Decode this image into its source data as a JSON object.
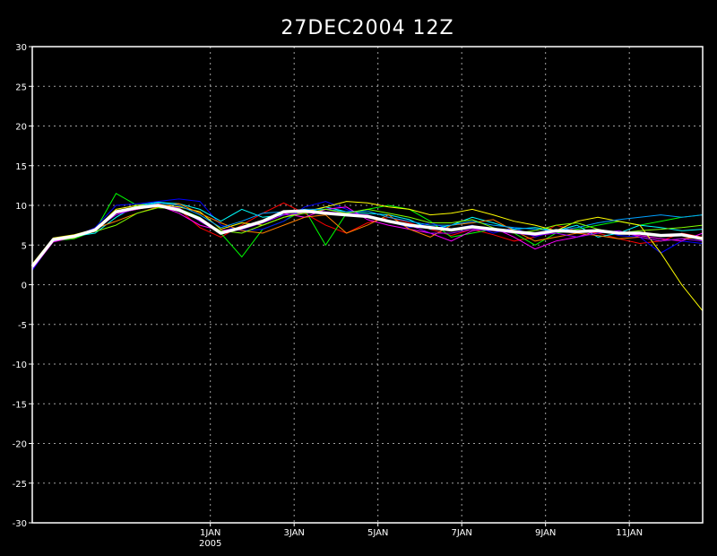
{
  "chart_data": {
    "type": "line",
    "title": "27DEC2004 12Z",
    "xlabel": "",
    "ylabel": "",
    "ylim": [
      -30,
      30
    ],
    "y_ticks": [
      "30",
      "25",
      "20",
      "15",
      "10",
      "5",
      "0",
      "-5",
      "-10",
      "-15",
      "-20",
      "-25",
      "-30"
    ],
    "x_range_days": [
      0,
      16
    ],
    "x_tick_labels": [
      {
        "label": "1JAN",
        "sublabel": "2005",
        "day": 4.25
      },
      {
        "label": "3JAN",
        "day": 6.25
      },
      {
        "label": "5JAN",
        "day": 8.25
      },
      {
        "label": "7JAN",
        "day": 10.25
      },
      {
        "label": "9JAN",
        "day": 12.25
      },
      {
        "label": "11JAN",
        "day": 14.25
      }
    ],
    "grid": true,
    "x": [
      0,
      0.5,
      1,
      1.5,
      2,
      2.5,
      3,
      3.5,
      4,
      4.5,
      5,
      5.5,
      6,
      6.5,
      7,
      7.5,
      8,
      8.5,
      9,
      9.5,
      10,
      10.5,
      11,
      11.5,
      12,
      12.5,
      13,
      13.5,
      14,
      14.5,
      15,
      15.5,
      16
    ],
    "series": [
      {
        "color": "#ff0000",
        "values": [
          2.5,
          5.8,
          6.2,
          7.0,
          9.0,
          9.5,
          10.2,
          9.5,
          7.2,
          6.0,
          7.5,
          9.0,
          10.3,
          9.0,
          7.5,
          6.5,
          7.8,
          8.5,
          7.8,
          7.0,
          6.2,
          7.0,
          6.3,
          5.5,
          6.0,
          7.5,
          6.8,
          6.5,
          5.8,
          5.2,
          5.5,
          6.5,
          6.0
        ]
      },
      {
        "color": "#00ff00",
        "values": [
          2.2,
          5.5,
          5.8,
          6.8,
          11.5,
          10.0,
          9.8,
          9.6,
          8.5,
          6.5,
          3.5,
          7.0,
          8.0,
          9.5,
          5.0,
          9.0,
          9.5,
          10.0,
          9.5,
          8.0,
          6.0,
          6.5,
          7.0,
          6.5,
          5.0,
          6.5,
          7.0,
          7.5,
          8.0,
          7.5,
          8.0,
          8.5,
          8.8
        ]
      },
      {
        "color": "#0000ff",
        "values": [
          1.8,
          5.6,
          6.0,
          7.2,
          10.0,
          10.2,
          10.5,
          10.8,
          10.5,
          7.5,
          6.8,
          7.0,
          8.0,
          9.8,
          10.5,
          9.5,
          8.5,
          8.0,
          7.2,
          7.8,
          7.0,
          7.5,
          6.5,
          7.2,
          6.0,
          6.8,
          6.5,
          7.0,
          6.2,
          6.0,
          4.0,
          5.5,
          5.2
        ]
      },
      {
        "color": "#00ffff",
        "values": [
          2.4,
          5.7,
          6.1,
          6.5,
          8.5,
          10.0,
          10.4,
          10.2,
          9.5,
          8.0,
          9.5,
          8.5,
          8.8,
          9.0,
          9.8,
          9.2,
          9.0,
          8.8,
          8.2,
          7.0,
          7.5,
          8.5,
          7.8,
          7.0,
          7.2,
          6.8,
          7.5,
          6.0,
          6.5,
          7.5,
          7.2,
          6.8,
          7.0
        ]
      },
      {
        "color": "#ff00ff",
        "values": [
          2.0,
          5.4,
          6.0,
          6.8,
          9.0,
          9.5,
          10.0,
          9.0,
          7.5,
          6.8,
          7.2,
          8.0,
          9.0,
          8.5,
          9.5,
          9.8,
          8.2,
          7.5,
          7.0,
          6.5,
          5.5,
          6.8,
          7.2,
          6.0,
          4.5,
          5.5,
          6.0,
          6.8,
          6.5,
          6.2,
          5.8,
          5.5,
          6.5
        ]
      },
      {
        "color": "#ffff00",
        "values": [
          2.6,
          5.9,
          6.3,
          7.0,
          9.5,
          10.0,
          10.1,
          9.8,
          9.2,
          7.0,
          7.8,
          7.5,
          8.5,
          9.2,
          9.8,
          10.5,
          10.3,
          9.8,
          9.5,
          8.8,
          9.0,
          9.5,
          8.8,
          8.0,
          7.5,
          6.8,
          8.0,
          8.5,
          8.0,
          7.5,
          4.0,
          0.0,
          -3.3
        ]
      },
      {
        "color": "#ff8000",
        "values": [
          2.3,
          5.6,
          5.9,
          7.1,
          8.0,
          9.0,
          9.8,
          10.2,
          9.0,
          7.8,
          6.8,
          6.5,
          7.5,
          8.5,
          8.8,
          6.5,
          7.5,
          8.8,
          7.0,
          6.0,
          7.5,
          7.8,
          8.2,
          6.8,
          5.5,
          6.0,
          6.5,
          6.2,
          5.8,
          6.0,
          5.5,
          5.8,
          6.0
        ]
      },
      {
        "color": "#00a0ff",
        "values": [
          2.1,
          5.5,
          6.2,
          6.9,
          9.2,
          9.8,
          10.3,
          10.0,
          8.8,
          7.2,
          8.0,
          9.0,
          9.2,
          9.5,
          9.5,
          9.2,
          9.3,
          8.5,
          8.0,
          7.5,
          7.5,
          8.0,
          7.5,
          7.2,
          7.0,
          6.8,
          7.2,
          7.8,
          8.2,
          8.5,
          8.8,
          8.5,
          8.8
        ]
      },
      {
        "color": "#a000ff",
        "values": [
          2.4,
          5.7,
          6.0,
          7.0,
          8.8,
          9.6,
          10.0,
          9.7,
          8.0,
          6.5,
          7.0,
          7.8,
          8.8,
          9.0,
          9.2,
          9.0,
          8.8,
          8.0,
          7.5,
          6.5,
          6.5,
          7.0,
          6.8,
          6.5,
          6.2,
          6.5,
          6.0,
          6.5,
          6.8,
          6.0,
          5.5,
          5.8,
          5.5
        ]
      },
      {
        "color": "#80ff00",
        "values": [
          2.2,
          5.8,
          6.1,
          6.7,
          7.5,
          9.0,
          9.7,
          9.6,
          8.2,
          6.8,
          6.5,
          7.5,
          8.5,
          9.0,
          9.5,
          9.0,
          9.5,
          9.0,
          8.5,
          7.8,
          7.8,
          8.2,
          7.2,
          6.5,
          6.8,
          7.5,
          7.8,
          7.0,
          6.5,
          6.8,
          7.0,
          7.2,
          7.5
        ]
      }
    ],
    "mean_series": {
      "color": "#ffffff",
      "values": [
        2.3,
        5.7,
        6.1,
        6.9,
        9.2,
        9.7,
        10.0,
        9.4,
        8.3,
        6.5,
        7.2,
        8.0,
        9.2,
        9.3,
        9.0,
        8.8,
        8.6,
        8.0,
        7.5,
        7.2,
        6.9,
        7.3,
        7.0,
        6.7,
        6.4,
        6.8,
        6.7,
        6.8,
        6.5,
        6.5,
        6.2,
        6.3,
        5.8
      ]
    }
  }
}
